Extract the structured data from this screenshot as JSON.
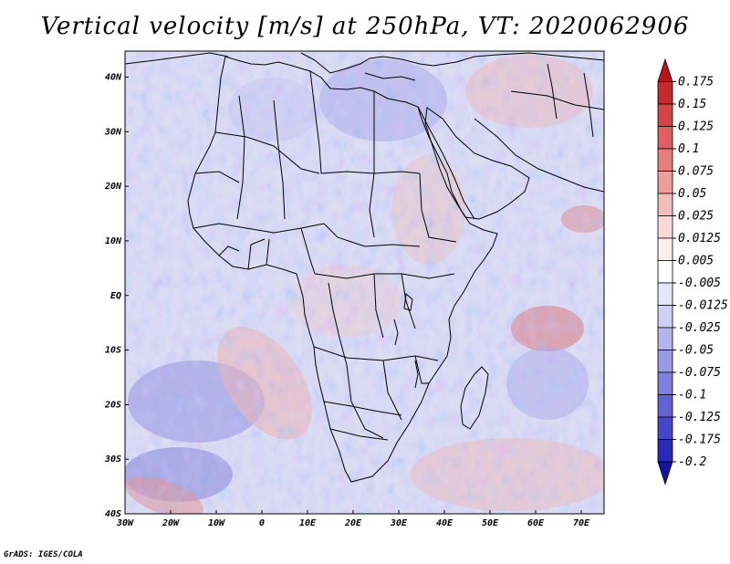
{
  "title": "Vertical velocity [m/s] at 250hPa, VT: 2020062906",
  "credit": "GrADS: IGES/COLA",
  "map": {
    "lon_range": [
      -30,
      75
    ],
    "lat_range": [
      -40,
      45
    ],
    "lon_ticks": [
      "30W",
      "20W",
      "10W",
      "0",
      "10E",
      "20E",
      "30E",
      "40E",
      "50E",
      "60E",
      "70E"
    ],
    "lat_ticks": [
      "40N",
      "30N",
      "20N",
      "10N",
      "EQ",
      "10S",
      "20S",
      "30S",
      "40S"
    ]
  },
  "colorbar": {
    "levels": [
      "0.175",
      "0.15",
      "0.125",
      "0.1",
      "0.075",
      "0.05",
      "0.025",
      "0.0125",
      "0.005",
      "-0.005",
      "-0.0125",
      "-0.025",
      "-0.05",
      "-0.075",
      "-0.1",
      "-0.125",
      "-0.175",
      "-0.2"
    ],
    "colors": [
      "#b5151b",
      "#c42a2e",
      "#d24547",
      "#de6062",
      "#e67e7e",
      "#ee9e9c",
      "#f3bdbb",
      "#f8d9d8",
      "#fdeeee",
      "#ffffff",
      "#e6e6fb",
      "#cfcff5",
      "#b5b5ee",
      "#9a9ae6",
      "#7f7fdd",
      "#6262d3",
      "#4646c6",
      "#2a2ab4",
      "#14149c"
    ]
  },
  "colors": {
    "background": "#ffffff",
    "field_base": "#dcdcf2",
    "coast": "#000000"
  }
}
